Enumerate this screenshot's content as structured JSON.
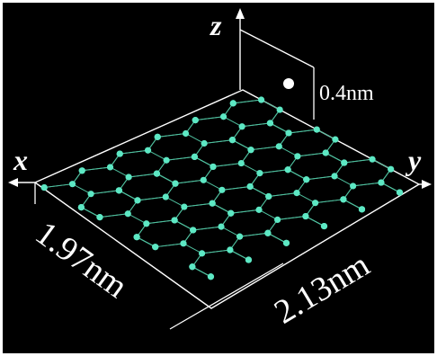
{
  "axes": {
    "x": "x",
    "y": "y",
    "z": "z"
  },
  "dimensions": {
    "height": "0.4nm",
    "width_x": "1.97nm",
    "width_y": "2.13nm"
  },
  "colors": {
    "background": "#000000",
    "atom": "#5de8c4",
    "bond": "#4fbf9e",
    "outline": "#ffffff"
  }
}
